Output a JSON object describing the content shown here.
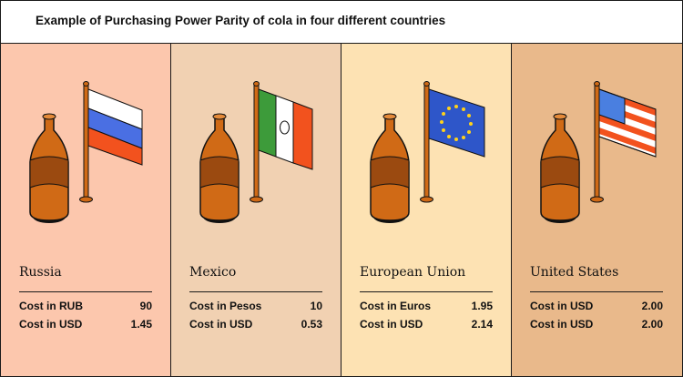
{
  "title": "Example of Purchasing Power Parity of cola in four different countries",
  "colors": {
    "russia_bg": "#fcc7ad",
    "mexico_bg": "#f1d1b2",
    "eu_bg": "#fde2b3",
    "us_bg": "#e9b98b",
    "bottle": "#d06a16",
    "bottle_label": "#b04f0b",
    "pole": "#d06a16"
  },
  "panels": [
    {
      "country": "Russia",
      "flag_icon": "russia-flag-icon",
      "rows": [
        {
          "label": "Cost in RUB",
          "value": "90"
        },
        {
          "label": "Cost in USD",
          "value": "1.45"
        }
      ]
    },
    {
      "country": "Mexico",
      "flag_icon": "mexico-flag-icon",
      "rows": [
        {
          "label": "Cost in Pesos",
          "value": "10"
        },
        {
          "label": "Cost in USD",
          "value": "0.53"
        }
      ]
    },
    {
      "country": "European Union",
      "flag_icon": "eu-flag-icon",
      "rows": [
        {
          "label": "Cost in Euros",
          "value": "1.95"
        },
        {
          "label": "Cost in USD",
          "value": "2.14"
        }
      ]
    },
    {
      "country": "United States",
      "flag_icon": "us-flag-icon",
      "rows": [
        {
          "label": "Cost in USD",
          "value": "2.00"
        },
        {
          "label": "Cost in USD",
          "value": "2.00"
        }
      ]
    }
  ]
}
